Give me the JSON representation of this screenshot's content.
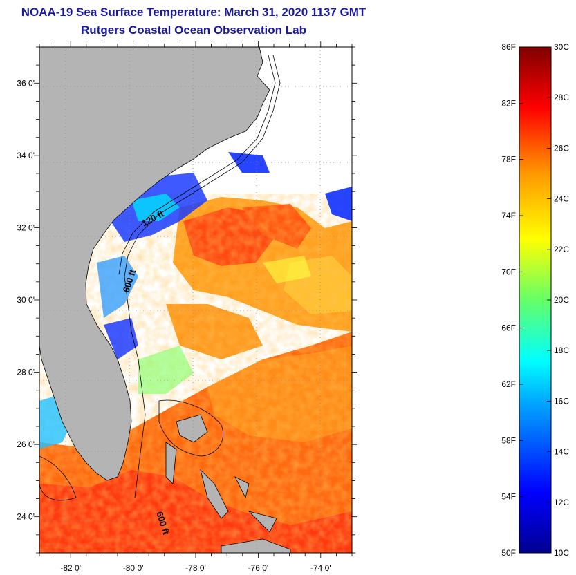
{
  "title": "NOAA-19 Sea Surface Temperature:  March 31, 2020 1137 GMT",
  "subtitle": "Rutgers Coastal Ocean Observation Lab",
  "map": {
    "lon_range": [
      -83,
      -73
    ],
    "lat_range": [
      23,
      37
    ],
    "lon_ticks": [
      "-82 0'",
      "-80 0'",
      "-78 0'",
      "-76 0'",
      "-74 0'"
    ],
    "lon_tick_values": [
      -82,
      -80,
      -78,
      -76,
      -74
    ],
    "lat_ticks": [
      "36 0'",
      "34 0'",
      "32 0'",
      "30 0'",
      "28 0'",
      "26 0'",
      "24 0'"
    ],
    "lat_tick_values": [
      36,
      34,
      32,
      30,
      28,
      26,
      24
    ],
    "contour_labels": [
      "120 ft",
      "600 ft",
      "600 ft"
    ],
    "land_color": "#b4b4b4",
    "cloud_color": "#ffffff"
  },
  "colorbar": {
    "fahrenheit_labels": [
      "86F",
      "82F",
      "78F",
      "74F",
      "70F",
      "66F",
      "62F",
      "58F",
      "54F",
      "50F"
    ],
    "celsius_labels": [
      "30C",
      "28C",
      "26C",
      "24C",
      "22C",
      "20C",
      "18C",
      "16C",
      "14C",
      "12C",
      "10C"
    ],
    "f_range": [
      50,
      86
    ],
    "c_range": [
      10,
      30
    ]
  }
}
